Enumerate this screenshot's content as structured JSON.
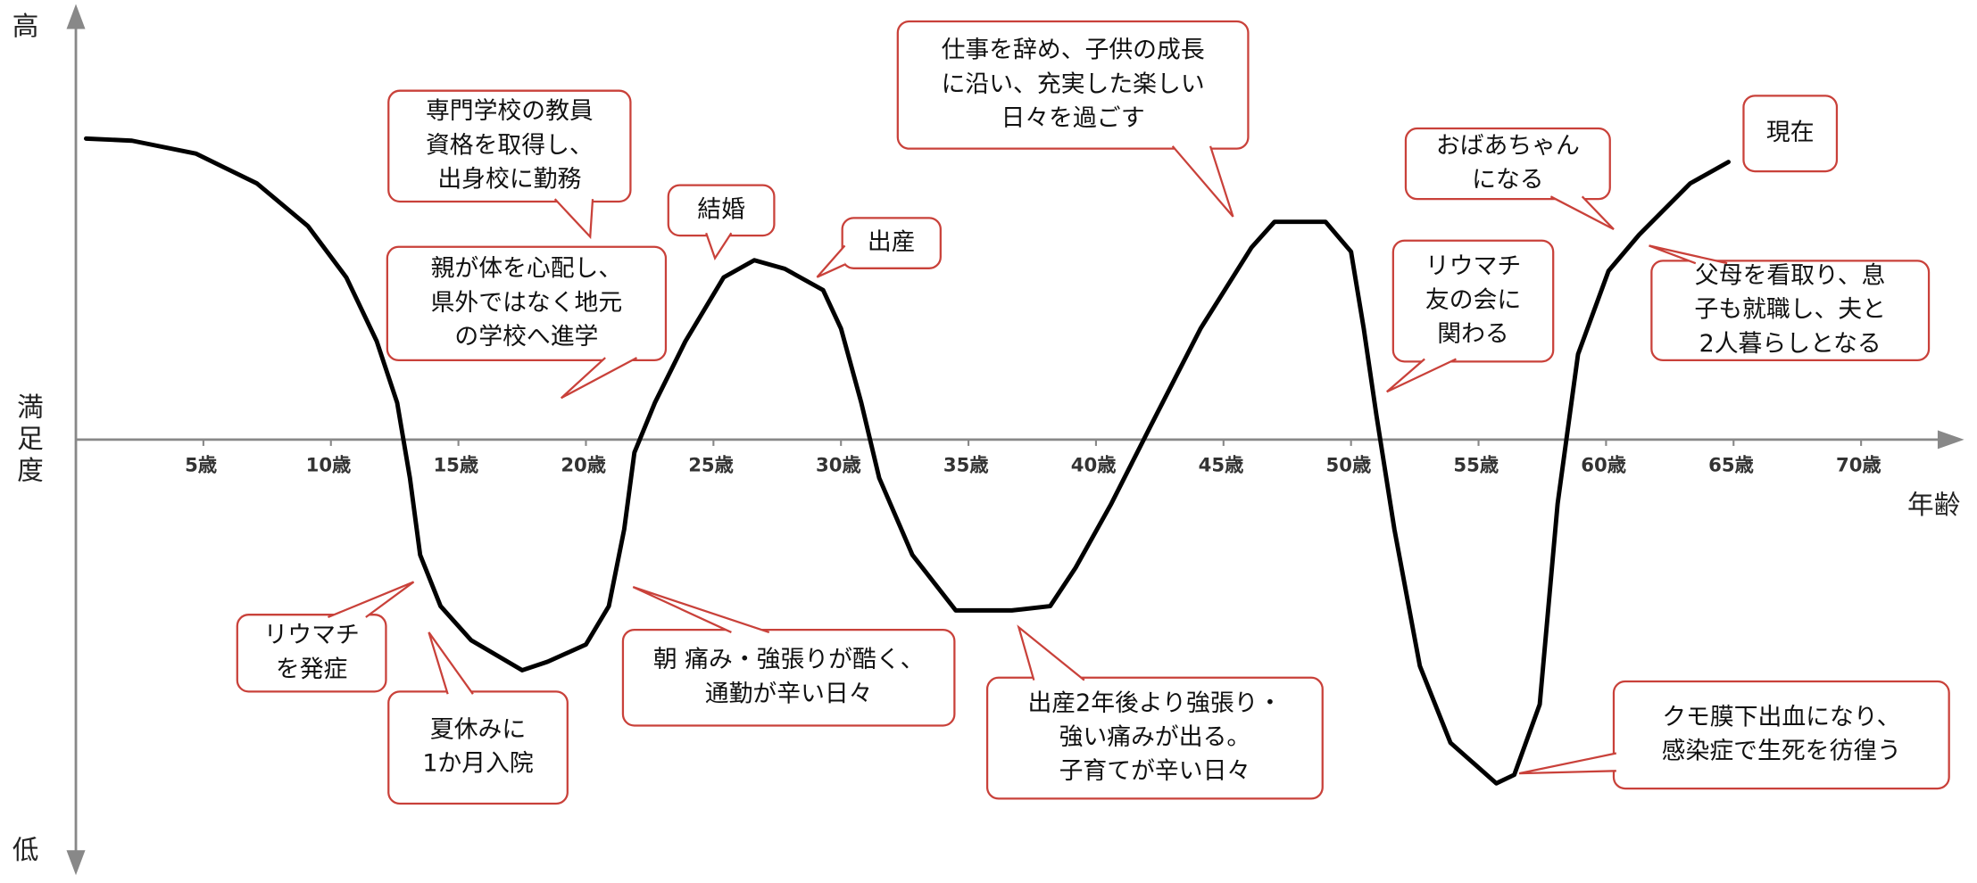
{
  "chart_data": {
    "type": "line",
    "xlabel": "年齢",
    "ylabel": "満足度",
    "xlim": [
      0,
      73.5
    ],
    "ylim": [
      -100,
      100
    ],
    "xticks": [
      {
        "value": 5,
        "label": "5歳"
      },
      {
        "value": 10,
        "label": "10歳"
      },
      {
        "value": 15,
        "label": "15歳"
      },
      {
        "value": 20,
        "label": "20歳"
      },
      {
        "value": 25,
        "label": "25歳"
      },
      {
        "value": 30,
        "label": "30歳"
      },
      {
        "value": 35,
        "label": "35歳"
      },
      {
        "value": 40,
        "label": "40歳"
      },
      {
        "value": 45,
        "label": "45歳"
      },
      {
        "value": 50,
        "label": "50歳"
      },
      {
        "value": 55,
        "label": "55歳"
      },
      {
        "value": 60,
        "label": "60歳"
      },
      {
        "value": 65,
        "label": "65歳"
      },
      {
        "value": 70,
        "label": "70歳"
      }
    ],
    "yticks": [
      {
        "value": 100,
        "label": "高"
      },
      {
        "value": -100,
        "label": "低"
      }
    ],
    "color": "#000000",
    "x": [
      0.4,
      2.2,
      4.7,
      7.1,
      9.1,
      10.6,
      11.8,
      12.6,
      13.1,
      13.5,
      14.3,
      15.5,
      17.5,
      18.5,
      20,
      20.9,
      21.5,
      21.9,
      22.7,
      23.9,
      25.4,
      26.6,
      27.8,
      29.3,
      30,
      30.8,
      31.5,
      32.8,
      34.5,
      36.7,
      38.2,
      39.2,
      40.6,
      42.1,
      44.1,
      46.1,
      47,
      49,
      50,
      50.5,
      51,
      51.7,
      52.7,
      53.9,
      55.7,
      56.4,
      57.4,
      58.1,
      58.9,
      60.1,
      61.3,
      63.3,
      64.8
    ],
    "values": [
      70.5,
      70,
      67,
      60,
      50,
      38,
      23,
      8.6,
      -9,
      -27,
      -39,
      -47,
      -54,
      -52,
      -48,
      -39,
      -21,
      -3,
      8.6,
      23,
      38,
      42,
      40,
      35,
      26,
      8.6,
      -9,
      -27,
      -40,
      -40,
      -39,
      -30,
      -15,
      2.7,
      26,
      45,
      51,
      51,
      44,
      26,
      5.6,
      -21,
      -53,
      -71,
      -80.5,
      -78.5,
      -62,
      -15,
      20,
      39.5,
      48,
      60,
      65
    ],
    "annotations": [
      {
        "lines": [
          "専門学校の教員",
          "資格を取得し、",
          "出身校に勤務"
        ]
      },
      {
        "lines": [
          "結婚"
        ]
      },
      {
        "lines": [
          "出産"
        ]
      },
      {
        "lines": [
          "親が体を心配し、",
          "県外ではなく地元",
          "の学校へ進学"
        ]
      },
      {
        "lines": [
          "仕事を辞め、子供の成長",
          "に沿い、充実した楽しい",
          "日々を過ごす"
        ]
      },
      {
        "lines": [
          "おばあちゃん",
          "になる"
        ]
      },
      {
        "lines": [
          "現在"
        ]
      },
      {
        "lines": [
          "リウマチ",
          "友の会に",
          "関わる"
        ]
      },
      {
        "lines": [
          "父母を看取り、息",
          "子も就職し、夫と",
          "2人暮らしとなる"
        ]
      },
      {
        "lines": [
          "リウマチ",
          "を発症"
        ]
      },
      {
        "lines": [
          "夏休みに",
          "1か月入院"
        ]
      },
      {
        "lines": [
          "朝 痛み・強張りが酷く、",
          "通勤が辛い日々"
        ]
      },
      {
        "lines": [
          "出産2年後より強張り・",
          "強い痛みが出る。",
          "子育てが辛い日々"
        ]
      },
      {
        "lines": [
          "クモ膜下出血になり、",
          "感染症で生死を彷徨う"
        ]
      }
    ]
  }
}
